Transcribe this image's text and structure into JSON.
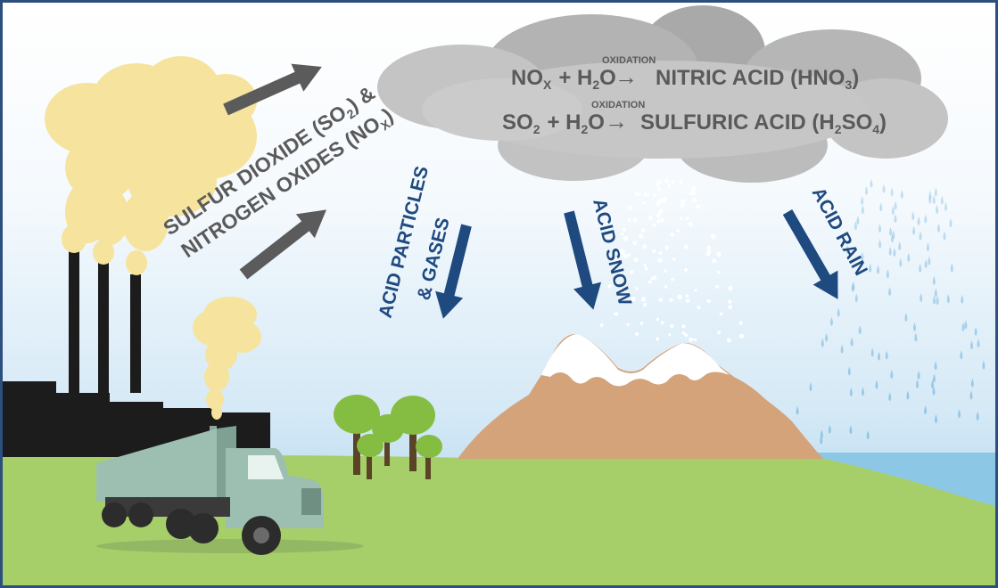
{
  "emission_label": {
    "line1": "SULFUR DIOXIDE (SO",
    "line1_sub": "2",
    "line1_end": ") &",
    "line2": "NITROGEN OXIDES (NO",
    "line2_sub": "X",
    "line2_end": ")"
  },
  "reactions": [
    {
      "reactant1": "NO",
      "reactant1_sub": "X",
      "plus": "+ H",
      "water_sub": "2",
      "water_end": "O",
      "arrow": "→",
      "process": "OXIDATION",
      "product": "NITRIC ACID (HNO",
      "product_sub": "3",
      "product_end": ")"
    },
    {
      "reactant1": "SO",
      "reactant1_sub": "2",
      "plus": "+ H",
      "water_sub": "2",
      "water_end": "O",
      "arrow": "→",
      "process": "OXIDATION",
      "product": "SULFURIC ACID (H",
      "product_sub": "2",
      "product_mid": "SO",
      "product_sub2": "4",
      "product_end": ")"
    }
  ],
  "deposition": {
    "particles_line1": "ACID PARTICLES",
    "particles_line2": "& GASES",
    "snow": "ACID SNOW",
    "rain": "ACID RAIN"
  },
  "colors": {
    "frame": "#2d4f7e",
    "sky_top": "#ffffff",
    "sky_bottom": "#a8d2ec",
    "ground": "#a6cf6a",
    "cloud_dark": "#a9a9a9",
    "cloud_light": "#cbcbcb",
    "smoke": "#f6e39d",
    "factory": "#1c1c1c",
    "arrow_gray": "#5b5b5b",
    "arrow_blue": "#1f4a80",
    "mountain": "#d4a37a",
    "snowcap": "#ffffff",
    "truck": "#9dbfb1",
    "tree_green": "#85bd42",
    "tree_trunk": "#5b4326",
    "water": "#8cc8e6",
    "text_gray": "#5a5a5a"
  }
}
